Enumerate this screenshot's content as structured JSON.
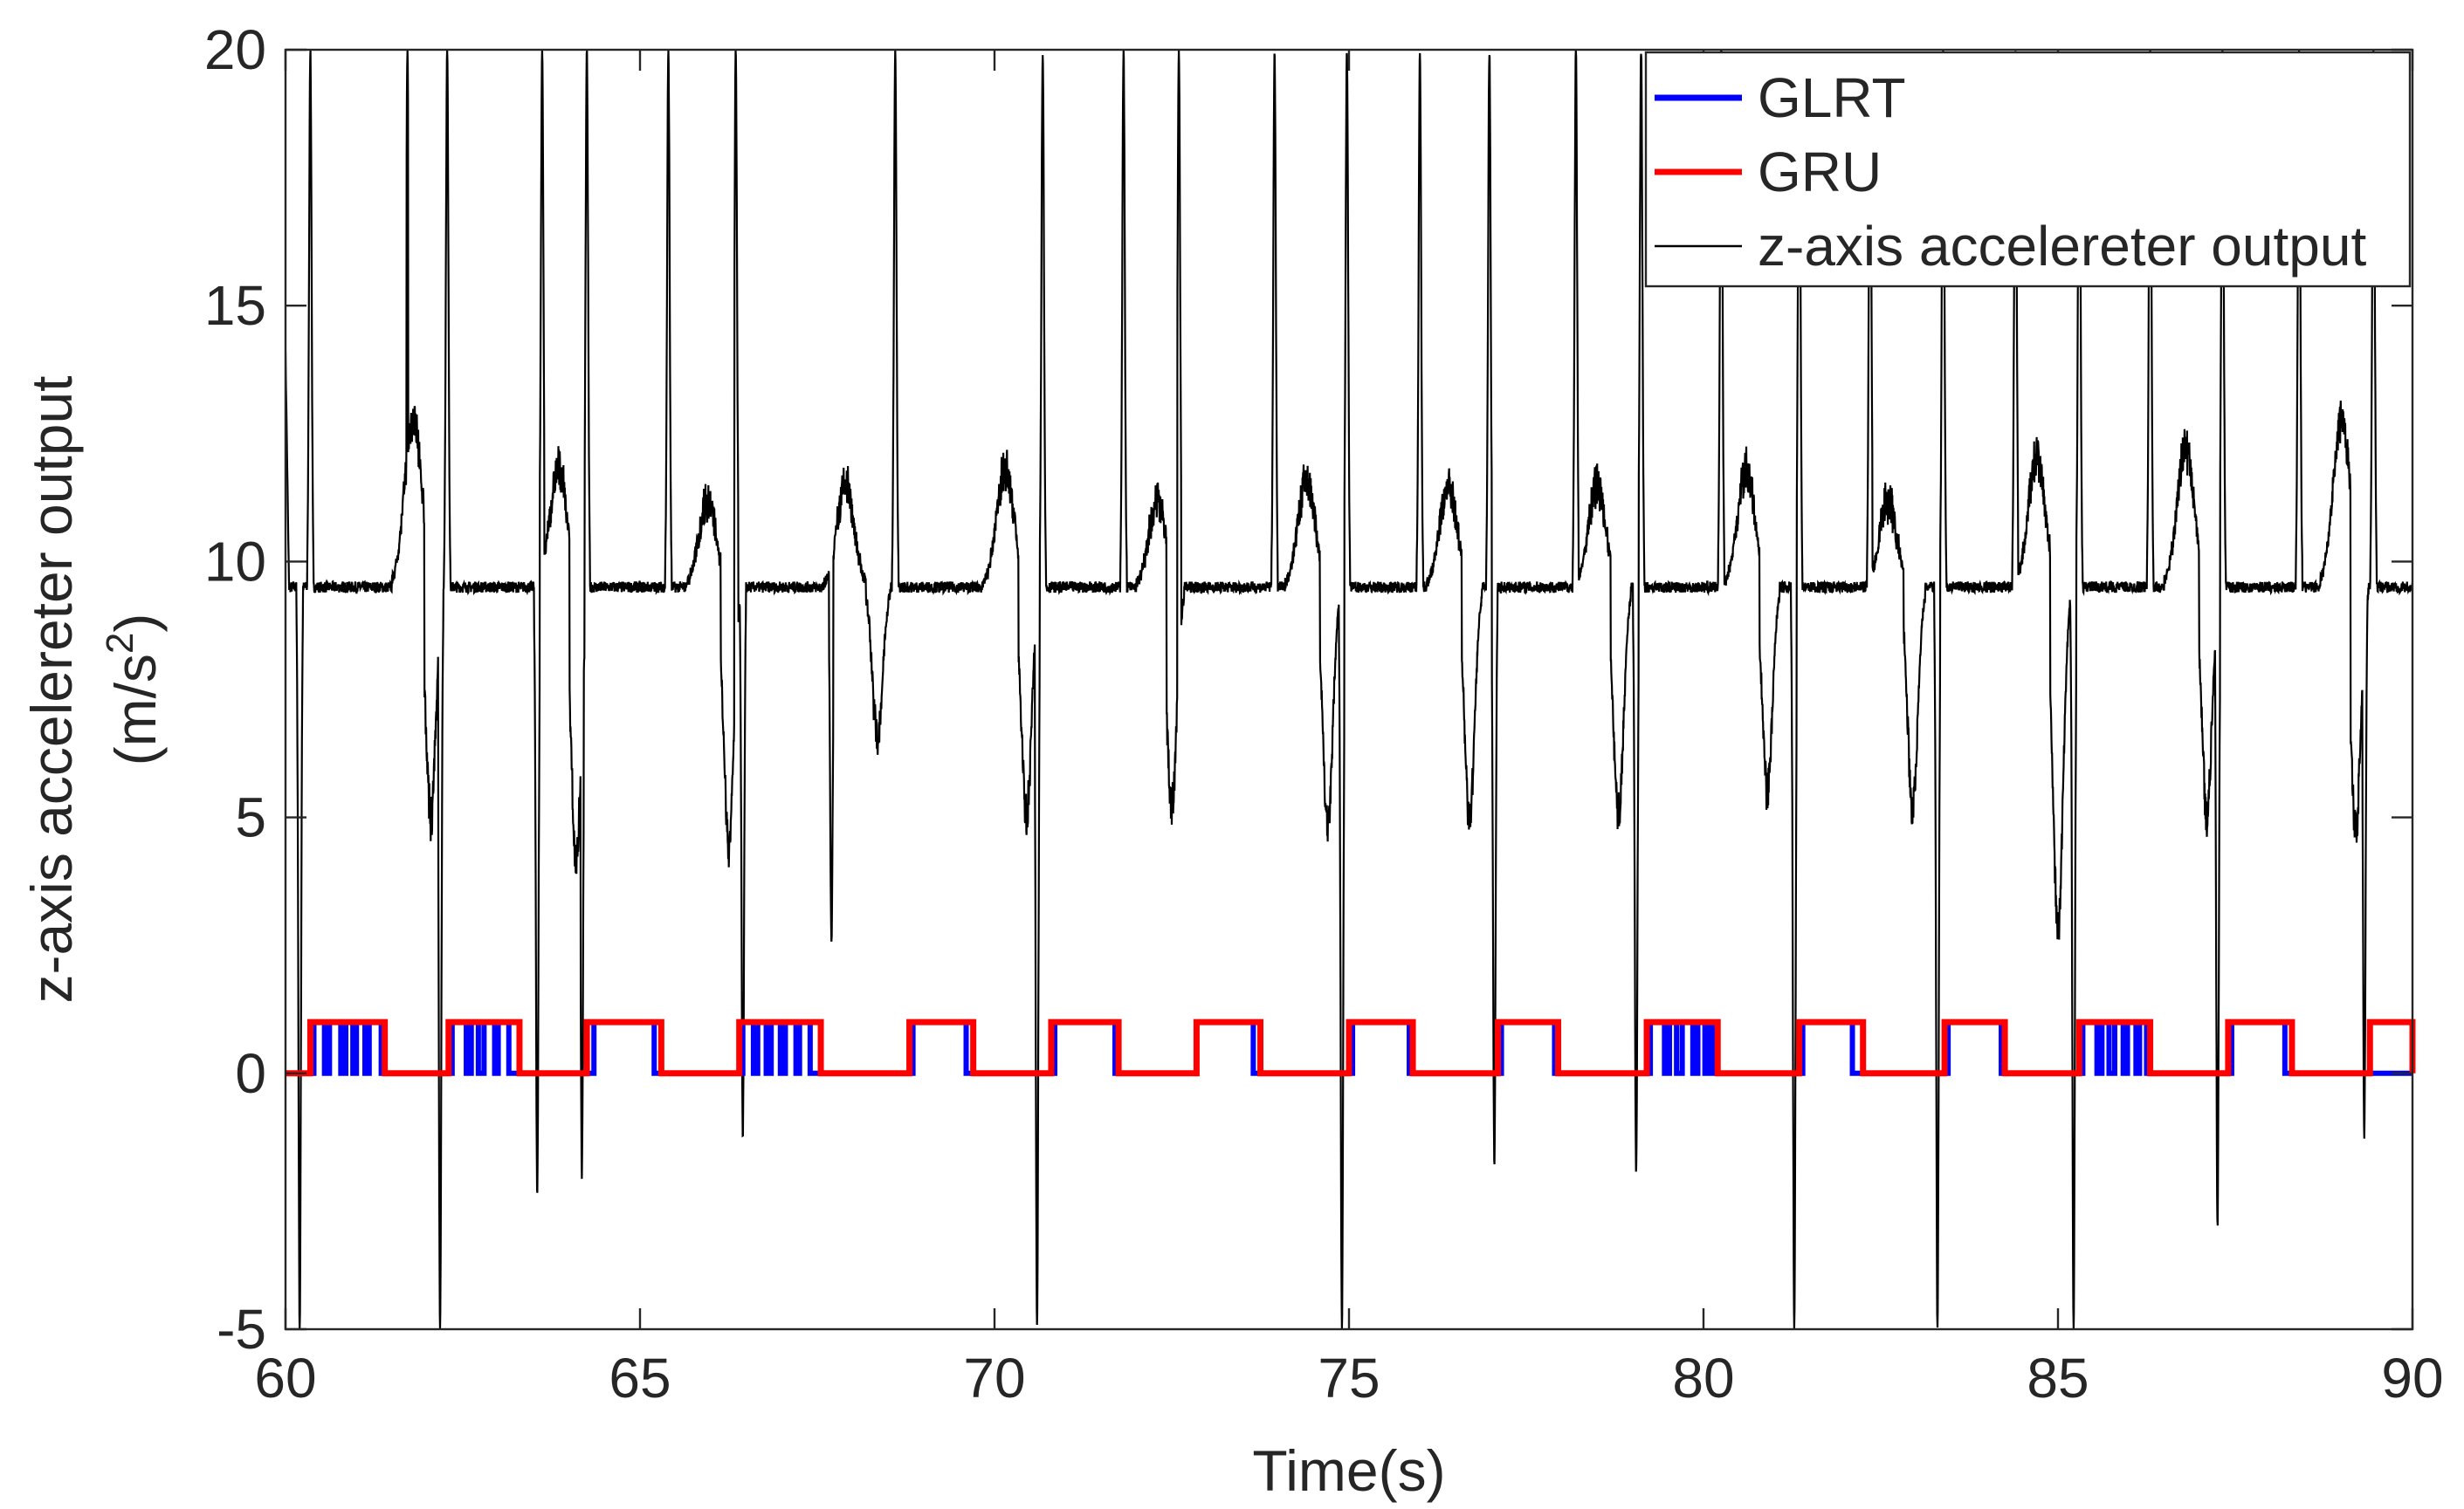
{
  "chart_data": {
    "type": "line",
    "title": "",
    "xlabel": "Time(s)",
    "ylabel_line1": "z-axis accelereter output",
    "ylabel_line2_prefix": "(m/s",
    "ylabel_line2_sup": "2",
    "ylabel_line2_suffix": ")",
    "xlim": [
      60,
      90
    ],
    "ylim": [
      -5,
      20
    ],
    "xticks": [
      60,
      65,
      70,
      75,
      80,
      85,
      90
    ],
    "yticks": [
      -5,
      0,
      5,
      10,
      15,
      20
    ],
    "legend_position": "top-right",
    "colors": {
      "glrt": "#0000ff",
      "gru": "#ff0000",
      "accel": "#000000",
      "axis": "#262626"
    },
    "series": [
      {
        "name": "GLRT",
        "kind": "step",
        "level_off": 0,
        "level_on": 1,
        "on_intervals": [
          [
            60.4,
            60.55
          ],
          [
            60.62,
            60.78
          ],
          [
            60.85,
            60.95
          ],
          [
            61.0,
            61.12
          ],
          [
            61.18,
            61.35
          ],
          [
            62.35,
            62.55
          ],
          [
            62.62,
            62.72
          ],
          [
            62.8,
            62.95
          ],
          [
            63.0,
            63.15
          ],
          [
            64.35,
            65.2
          ],
          [
            66.45,
            66.6
          ],
          [
            66.66,
            66.78
          ],
          [
            66.85,
            66.98
          ],
          [
            67.05,
            67.2
          ],
          [
            67.25,
            67.4
          ],
          [
            68.85,
            69.6
          ],
          [
            70.85,
            71.7
          ],
          [
            72.85,
            73.65
          ],
          [
            75.05,
            75.85
          ],
          [
            77.15,
            77.9
          ],
          [
            79.25,
            79.45
          ],
          [
            79.52,
            79.62
          ],
          [
            79.7,
            79.85
          ],
          [
            79.92,
            80.02
          ],
          [
            80.08,
            80.15
          ],
          [
            81.4,
            82.1
          ],
          [
            83.45,
            84.2
          ],
          [
            85.35,
            85.55
          ],
          [
            85.62,
            85.72
          ],
          [
            85.8,
            85.92
          ],
          [
            85.98,
            86.1
          ],
          [
            86.15,
            86.25
          ],
          [
            87.45,
            88.2
          ]
        ]
      },
      {
        "name": "GRU",
        "kind": "step",
        "level_off": 0,
        "level_on": 1,
        "on_intervals": [
          [
            60.35,
            61.4
          ],
          [
            62.3,
            63.3
          ],
          [
            64.25,
            65.3
          ],
          [
            66.4,
            67.55
          ],
          [
            68.8,
            69.7
          ],
          [
            70.8,
            71.75
          ],
          [
            72.85,
            73.75
          ],
          [
            75.0,
            75.9
          ],
          [
            77.1,
            77.95
          ],
          [
            79.2,
            80.2
          ],
          [
            81.35,
            82.25
          ],
          [
            83.4,
            84.25
          ],
          [
            85.3,
            86.3
          ],
          [
            87.4,
            88.3
          ],
          [
            89.4,
            90.0
          ]
        ]
      },
      {
        "name": "z-axis accelereter output",
        "kind": "signal",
        "baseline": 9.5,
        "noise": 0.22,
        "start_value": 14.1,
        "spikes": [
          {
            "t": 60.2,
            "v": -5.0
          },
          {
            "t": 60.35,
            "v": 20.0
          },
          {
            "t": 61.72,
            "v": 20.0
          },
          {
            "t": 62.18,
            "v": -5.0
          },
          {
            "t": 62.28,
            "v": 20.0
          },
          {
            "t": 63.55,
            "v": -2.4
          },
          {
            "t": 63.62,
            "v": 20.0
          },
          {
            "t": 64.18,
            "v": -2.0
          },
          {
            "t": 64.25,
            "v": 20.0
          },
          {
            "t": 65.4,
            "v": 20.0
          },
          {
            "t": 66.35,
            "v": 20.0
          },
          {
            "t": 66.45,
            "v": -1.2
          },
          {
            "t": 67.7,
            "v": 2.6
          },
          {
            "t": 68.6,
            "v": 20.0
          },
          {
            "t": 70.6,
            "v": -5.0
          },
          {
            "t": 70.68,
            "v": 20.0
          },
          {
            "t": 71.82,
            "v": 20.0
          },
          {
            "t": 72.6,
            "v": 20.0
          },
          {
            "t": 73.95,
            "v": 20.0
          },
          {
            "t": 74.9,
            "v": -5.0
          },
          {
            "t": 74.97,
            "v": 20.0
          },
          {
            "t": 76.0,
            "v": 20.0
          },
          {
            "t": 76.98,
            "v": 20.0
          },
          {
            "t": 77.05,
            "v": -1.8
          },
          {
            "t": 78.2,
            "v": 20.0
          },
          {
            "t": 79.05,
            "v": -2.0
          },
          {
            "t": 79.12,
            "v": 20.0
          },
          {
            "t": 80.25,
            "v": 20.0
          },
          {
            "t": 81.28,
            "v": -5.0
          },
          {
            "t": 81.35,
            "v": 20.0
          },
          {
            "t": 82.35,
            "v": 20.0
          },
          {
            "t": 83.3,
            "v": -5.0
          },
          {
            "t": 83.38,
            "v": 20.0
          },
          {
            "t": 84.4,
            "v": 20.0
          },
          {
            "t": 85.22,
            "v": -5.0
          },
          {
            "t": 85.3,
            "v": 20.0
          },
          {
            "t": 86.3,
            "v": 20.0
          },
          {
            "t": 87.25,
            "v": -3.0
          },
          {
            "t": 87.32,
            "v": 20.0
          },
          {
            "t": 88.4,
            "v": 20.0
          },
          {
            "t": 89.32,
            "v": -1.2
          },
          {
            "t": 89.45,
            "v": 20.0
          }
        ],
        "bumps": [
          {
            "t": 61.8,
            "v": 12.8
          },
          {
            "t": 63.85,
            "v": 11.8
          },
          {
            "t": 65.95,
            "v": 11.2
          },
          {
            "t": 67.9,
            "v": 11.5
          },
          {
            "t": 70.15,
            "v": 11.8
          },
          {
            "t": 72.3,
            "v": 11.2
          },
          {
            "t": 74.4,
            "v": 11.6
          },
          {
            "t": 76.4,
            "v": 11.5
          },
          {
            "t": 78.5,
            "v": 11.5
          },
          {
            "t": 80.6,
            "v": 11.8
          },
          {
            "t": 82.6,
            "v": 11.2
          },
          {
            "t": 84.7,
            "v": 12.0
          },
          {
            "t": 86.8,
            "v": 12.2
          },
          {
            "t": 89.0,
            "v": 12.8
          }
        ],
        "dips": [
          {
            "t": 62.05,
            "v": 5.0
          },
          {
            "t": 64.1,
            "v": 4.2
          },
          {
            "t": 66.25,
            "v": 4.5
          },
          {
            "t": 68.35,
            "v": 6.5
          },
          {
            "t": 70.45,
            "v": 5.0
          },
          {
            "t": 72.5,
            "v": 5.2
          },
          {
            "t": 74.7,
            "v": 4.8
          },
          {
            "t": 76.7,
            "v": 5.0
          },
          {
            "t": 78.8,
            "v": 5.0
          },
          {
            "t": 80.9,
            "v": 5.5
          },
          {
            "t": 82.95,
            "v": 5.2
          },
          {
            "t": 85.0,
            "v": 2.8
          },
          {
            "t": 87.1,
            "v": 5.0
          },
          {
            "t": 89.2,
            "v": 4.8
          }
        ]
      }
    ]
  }
}
